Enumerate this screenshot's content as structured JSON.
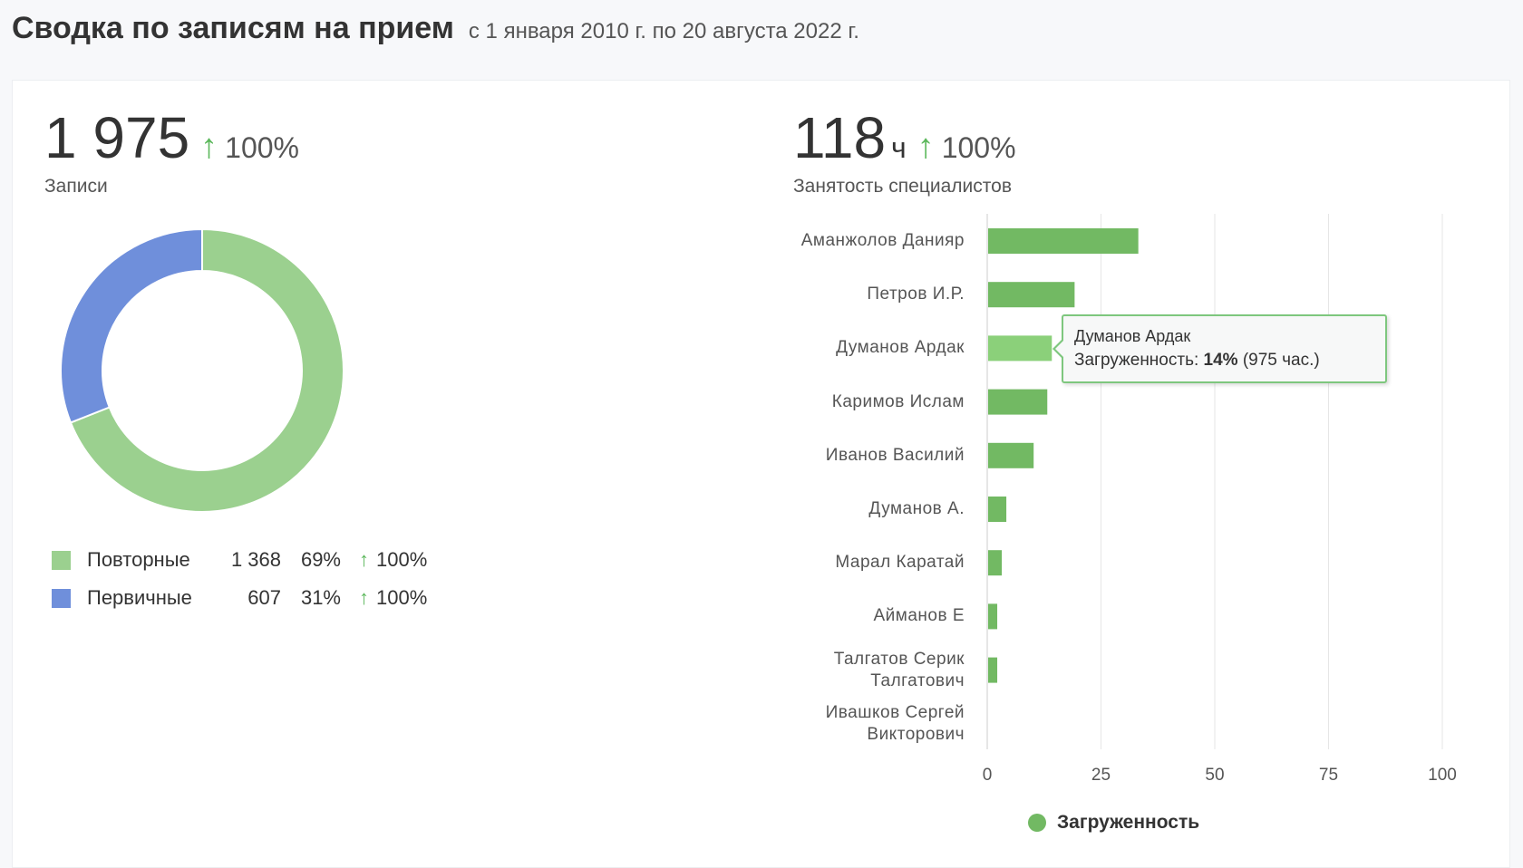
{
  "header": {
    "title": "Сводка по записям на прием",
    "subtitle": "с 1 января 2010 г. по 20 августа 2022 г."
  },
  "appointments": {
    "value": "1 975",
    "arrow": "↑",
    "change": "100%",
    "label": "Записи",
    "donut": [
      {
        "name": "Повторные",
        "count": "1 368",
        "percent": "69%",
        "change": "100%",
        "fraction": 0.69,
        "color": "#9bd08f"
      },
      {
        "name": "Первичные",
        "count": "607",
        "percent": "31%",
        "change": "100%",
        "fraction": 0.31,
        "color": "#6f8fdb"
      }
    ]
  },
  "workload": {
    "value": "118",
    "unit": "ч",
    "arrow": "↑",
    "change": "100%",
    "label": "Занятость специалистов"
  },
  "chart_data": {
    "type": "bar",
    "orientation": "horizontal",
    "categories": [
      "Аманжолов Данияр",
      "Петров И.Р.",
      "Думанов Ардак",
      "Каримов Ислам",
      "Иванов Василий",
      "Думанов А.",
      "Марал Каратай",
      "Айманов Е",
      "Талгатов Серик Талгатович",
      "Ивашков Сергей Викторович"
    ],
    "values": [
      33,
      19,
      14,
      13,
      10,
      4,
      3,
      2,
      2,
      0
    ],
    "xlim": [
      0,
      100
    ],
    "xticks": [
      "0",
      "25",
      "50",
      "75",
      "100"
    ],
    "legend": "Загруженность",
    "legend_position": "bottom",
    "color": "#72b963",
    "highlight_color": "#8bd07a",
    "highlight_index": 2,
    "tooltip": {
      "title": "Думанов Ардак",
      "label": "Загруженность:",
      "value": "14%",
      "extra": "(975 час.)"
    }
  }
}
